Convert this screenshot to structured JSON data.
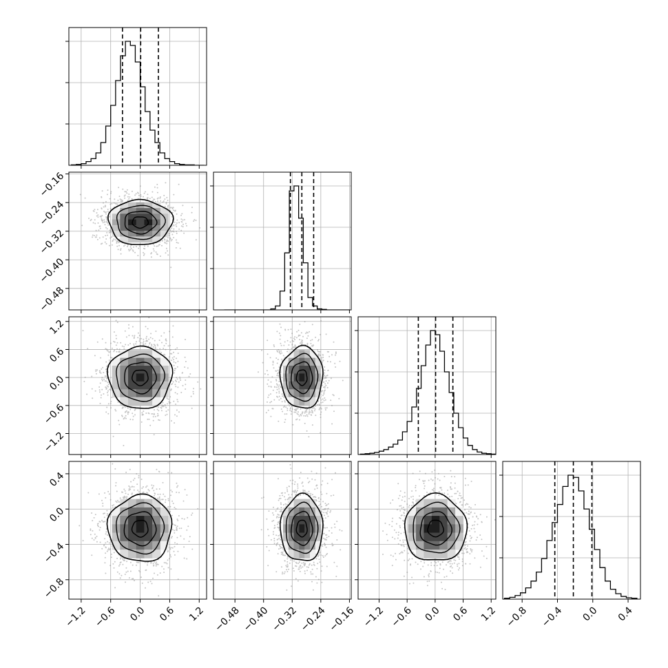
{
  "chart_data": {
    "type": "corner",
    "n_params": 4,
    "params": [
      {
        "name": "",
        "range": [
          -1.45,
          1.35
        ],
        "ticks": [
          -1.2,
          -0.6,
          0.0,
          0.6,
          1.2
        ],
        "tick_labels": [
          "−1.2",
          "−0.6",
          "0.0",
          "0.6",
          "1.2"
        ],
        "quantiles": [
          -0.36,
          0.01,
          0.37
        ]
      },
      {
        "name": "",
        "range": [
          -0.54,
          -0.155
        ],
        "ticks": [
          -0.48,
          -0.4,
          -0.32,
          -0.24,
          -0.16
        ],
        "tick_labels": [
          "−0.48",
          "−0.40",
          "−0.32",
          "−0.24",
          "−0.16"
        ],
        "quantiles": [
          -0.325,
          -0.293,
          -0.26
        ]
      },
      {
        "name": "",
        "range": [
          -1.65,
          1.3
        ],
        "ticks": [
          -1.2,
          -0.6,
          0.0,
          0.6,
          1.2
        ],
        "tick_labels": [
          "−1.2",
          "−0.6",
          "0.0",
          "0.6",
          "1.2"
        ],
        "quantiles": [
          -0.36,
          0.01,
          0.38
        ]
      },
      {
        "name": "",
        "range": [
          -1.02,
          0.54
        ],
        "ticks": [
          -0.8,
          -0.4,
          0.0,
          0.4
        ],
        "tick_labels": [
          "−0.8",
          "−0.4",
          "0.0",
          "0.4"
        ],
        "quantiles": [
          -0.43,
          -0.22,
          -0.01
        ]
      }
    ],
    "histograms": [
      {
        "param": 0,
        "bins": [
          -1.4,
          -1.3,
          -1.2,
          -1.1,
          -1.0,
          -0.9,
          -0.8,
          -0.7,
          -0.6,
          -0.5,
          -0.4,
          -0.3,
          -0.2,
          -0.1,
          0.0,
          0.1,
          0.2,
          0.3,
          0.4,
          0.5,
          0.6,
          0.7,
          0.8,
          0.9,
          1.0,
          1.1,
          1.2,
          1.3
        ],
        "counts": [
          1,
          2,
          4,
          9,
          16,
          30,
          55,
          95,
          145,
          205,
          265,
          300,
          290,
          250,
          190,
          130,
          85,
          55,
          30,
          16,
          9,
          4,
          2,
          1,
          1,
          0,
          0
        ]
      },
      {
        "param": 1,
        "bins": [
          -0.51,
          -0.497,
          -0.484,
          -0.471,
          -0.458,
          -0.445,
          -0.432,
          -0.419,
          -0.406,
          -0.393,
          -0.38,
          -0.367,
          -0.354,
          -0.341,
          -0.328,
          -0.315,
          -0.302,
          -0.289,
          -0.276,
          -0.263,
          -0.25,
          -0.237,
          -0.224,
          -0.211,
          -0.198,
          -0.185,
          -0.172,
          -0.159
        ],
        "counts": [
          0,
          0,
          0,
          0,
          0,
          0,
          0,
          0,
          0,
          0,
          2,
          8,
          38,
          115,
          240,
          250,
          185,
          95,
          25,
          8,
          2,
          1,
          0,
          0,
          0,
          0,
          0
        ]
      },
      {
        "param": 2,
        "bins": [
          -1.6,
          -1.5,
          -1.4,
          -1.3,
          -1.2,
          -1.1,
          -1.0,
          -0.9,
          -0.8,
          -0.7,
          -0.6,
          -0.5,
          -0.4,
          -0.3,
          -0.2,
          -0.1,
          0.0,
          0.1,
          0.2,
          0.3,
          0.4,
          0.5,
          0.6,
          0.7,
          0.8,
          0.9,
          1.0,
          1.1,
          1.2,
          1.3
        ],
        "counts": [
          1,
          2,
          3,
          5,
          8,
          12,
          18,
          25,
          35,
          55,
          80,
          115,
          160,
          215,
          265,
          300,
          290,
          250,
          200,
          150,
          100,
          65,
          40,
          22,
          12,
          6,
          3,
          2,
          1
        ]
      },
      {
        "param": 3,
        "bins": [
          -1.0,
          -0.94,
          -0.88,
          -0.82,
          -0.76,
          -0.7,
          -0.64,
          -0.58,
          -0.52,
          -0.46,
          -0.4,
          -0.34,
          -0.28,
          -0.22,
          -0.16,
          -0.1,
          -0.04,
          0.02,
          0.08,
          0.14,
          0.2,
          0.26,
          0.32,
          0.38,
          0.44,
          0.5
        ],
        "counts": [
          2,
          4,
          8,
          14,
          25,
          40,
          60,
          90,
          130,
          170,
          210,
          250,
          275,
          270,
          240,
          200,
          155,
          110,
          70,
          40,
          22,
          12,
          6,
          3,
          2
        ]
      }
    ],
    "pairs": [
      {
        "x": 0,
        "y": 1,
        "center": [
          0.0,
          -0.295
        ],
        "spread": [
          0.36,
          0.035
        ],
        "rho": 0.0
      },
      {
        "x": 0,
        "y": 2,
        "center": [
          0.0,
          0.0
        ],
        "spread": [
          0.36,
          0.37
        ],
        "rho": 0.0
      },
      {
        "x": 1,
        "y": 2,
        "center": [
          -0.293,
          0.0
        ],
        "spread": [
          0.033,
          0.37
        ],
        "rho": 0.0
      },
      {
        "x": 0,
        "y": 3,
        "center": [
          0.0,
          -0.22
        ],
        "spread": [
          0.36,
          0.21
        ],
        "rho": 0.0
      },
      {
        "x": 1,
        "y": 3,
        "center": [
          -0.293,
          -0.22
        ],
        "spread": [
          0.033,
          0.21
        ],
        "rho": 0.0
      },
      {
        "x": 2,
        "y": 3,
        "center": [
          0.01,
          -0.22
        ],
        "spread": [
          0.37,
          0.21
        ],
        "rho": 0.0
      }
    ],
    "contour_levels_sigma": [
      0.5,
      1.0,
      1.5,
      2.0
    ],
    "grid": true,
    "quantile_lines": "dashed"
  }
}
